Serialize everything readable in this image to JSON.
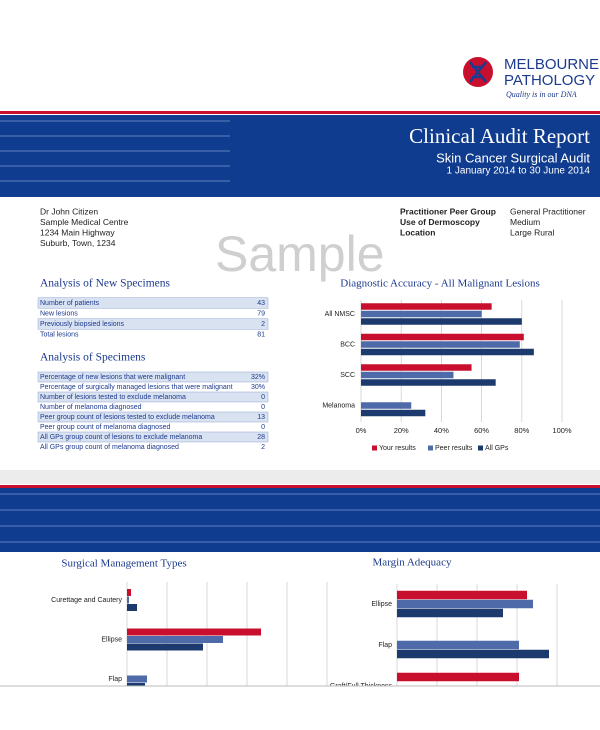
{
  "logo": {
    "name": [
      "MELBOURNE",
      "PATHOLOGY"
    ],
    "tagline": "Quality is in our DNA"
  },
  "header": {
    "title": "Clinical Audit Report",
    "subtitle": "Skin Cancer Surgical Audit",
    "period": "1 January 2014 to 30 June 2014"
  },
  "watermark": "Sample",
  "address": [
    "Dr John Citizen",
    "Sample Medical Centre",
    "1234 Main Highway",
    "Suburb, Town, 1234"
  ],
  "practitioner": [
    [
      "Practitioner Peer Group",
      "General Practitioner"
    ],
    [
      "Use of Dermoscopy",
      "Medium"
    ],
    [
      "Location",
      "Large Rural"
    ]
  ],
  "tables": [
    {
      "title": "Analysis of New Specimens",
      "rows": [
        [
          "Number of patients",
          43
        ],
        [
          "New lesions",
          79
        ],
        [
          "Previously biopsied lesions",
          2
        ],
        [
          "Total lesions",
          81
        ]
      ]
    },
    {
      "title": "Analysis of Specimens",
      "rows": [
        [
          "Percentage of new lesions that were malignant",
          "32%"
        ],
        [
          "Percentage of surgically managed lesions that were malignant",
          "30%"
        ],
        [
          "Number of lesions tested to exclude melanoma",
          0
        ],
        [
          "Number of melanoma diagnosed",
          0
        ],
        [
          "Peer group count of lesions tested to exclude melanoma",
          13
        ],
        [
          "Peer group count of melanoma diagnosed",
          0
        ],
        [
          "All GPs group count of lesions to exclude melanoma",
          28
        ],
        [
          "All GPs group count of melanoma diagnosed",
          2
        ]
      ]
    }
  ],
  "charts": [
    {
      "type": "bar",
      "orientation": "horizontal",
      "title": "Diagnostic Accuracy - All Malignant Lesions",
      "categories": [
        "All NMSC",
        "BCC",
        "SCC",
        "Melanoma"
      ],
      "series": [
        {
          "name": "Your results",
          "color": "#c8102e",
          "values": [
            65,
            81,
            55,
            0
          ]
        },
        {
          "name": "Peer results",
          "color": "#4f6aa8",
          "values": [
            60,
            79,
            46,
            25
          ]
        },
        {
          "name": "All GPs",
          "color": "#1c3a6e",
          "values": [
            80,
            86,
            67,
            32
          ]
        }
      ],
      "xlim": [
        0,
        100
      ],
      "xticks": [
        {
          "value": 0,
          "label": "0%"
        },
        {
          "value": 20,
          "label": "20%"
        },
        {
          "value": 40,
          "label": "40%"
        },
        {
          "value": 60,
          "label": "60%"
        },
        {
          "value": 80,
          "label": "80%"
        },
        {
          "value": 100,
          "label": "100%"
        }
      ],
      "grid": true
    },
    {
      "type": "bar",
      "orientation": "horizontal",
      "title": "Surgical Management Types",
      "categories": [
        "Curettage and Cautery",
        "Ellipse",
        "Flap"
      ],
      "series": [
        {
          "color": "#c8102e",
          "values": [
            2,
            67,
            0
          ]
        },
        {
          "color": "#4f6aa8",
          "values": [
            1,
            48,
            10
          ]
        },
        {
          "color": "#1c3a6e",
          "values": [
            5,
            38,
            9
          ]
        }
      ],
      "xlim": [
        0,
        100
      ],
      "xticks": [
        0,
        20,
        40,
        60,
        80,
        100
      ],
      "grid": true
    },
    {
      "type": "bar",
      "orientation": "horizontal",
      "title": "Margin Adequacy",
      "categories": [
        "Ellipse",
        "Flap",
        "Graft/Full Thickness"
      ],
      "series": [
        {
          "color": "#c8102e",
          "values": [
            65,
            0,
            61
          ]
        },
        {
          "color": "#4f6aa8",
          "values": [
            68,
            61,
            null
          ]
        },
        {
          "color": "#1c3a6e",
          "values": [
            53,
            76,
            45
          ]
        }
      ],
      "xlim": [
        0,
        80
      ],
      "xticks": [
        0,
        20,
        40,
        60,
        80
      ],
      "grid": true
    }
  ]
}
